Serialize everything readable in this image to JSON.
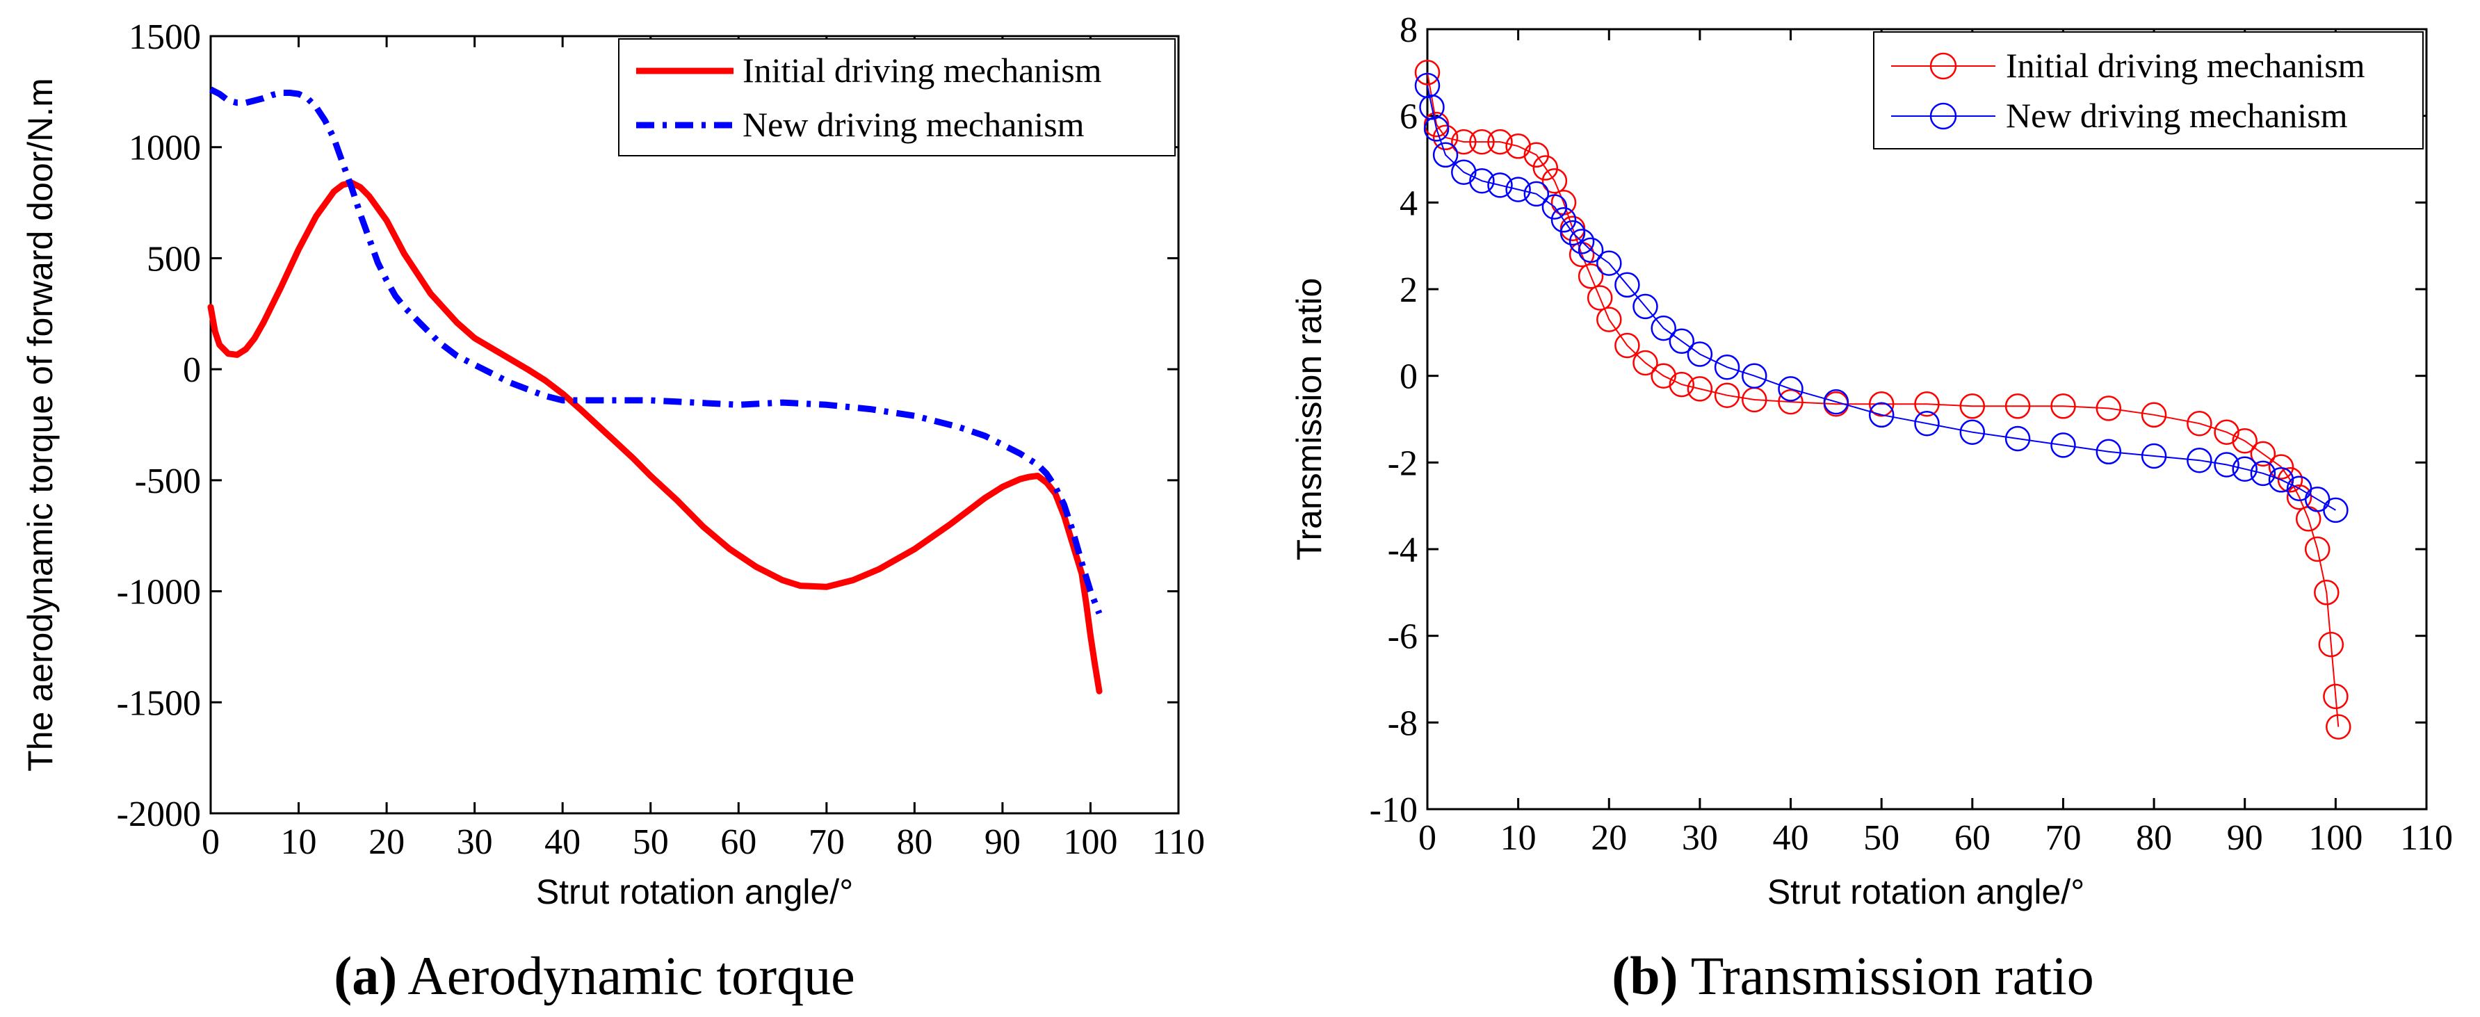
{
  "chart_data": [
    {
      "type": "line",
      "title": "",
      "xlabel": "Strut rotation angle/°",
      "ylabel": "The aerodynamic torque of forward door/N.m",
      "xlim": [
        0,
        110
      ],
      "ylim": [
        -2000,
        1500
      ],
      "xticks": [
        "0",
        "10",
        "20",
        "30",
        "40",
        "50",
        "60",
        "70",
        "80",
        "90",
        "100",
        "110"
      ],
      "yticks": [
        "-2000",
        "-1500",
        "-1000",
        "-500",
        "0",
        "500",
        "1000",
        "1500"
      ],
      "legend": "top-right",
      "caption": {
        "bold": "(a)",
        "text": " Aerodynamic torque"
      },
      "series": [
        {
          "name": "Initial driving mechanism",
          "color": "#ff0000",
          "style": "solid",
          "x": [
            0,
            0.5,
            1,
            2,
            3,
            4,
            5,
            6,
            8,
            10,
            12,
            14,
            15,
            16,
            17,
            18,
            20,
            22,
            25,
            28,
            30,
            33,
            36,
            38,
            40,
            42,
            45,
            48,
            50,
            53,
            56,
            59,
            62,
            65,
            67,
            70,
            73,
            76,
            80,
            84,
            88,
            90,
            92,
            93,
            94,
            95,
            96,
            97,
            98,
            99,
            99.5,
            100,
            100.5,
            101
          ],
          "y": [
            280,
            170,
            110,
            70,
            65,
            90,
            140,
            210,
            370,
            540,
            690,
            800,
            830,
            840,
            820,
            780,
            670,
            520,
            340,
            210,
            140,
            70,
            0,
            -50,
            -110,
            -180,
            -290,
            -400,
            -480,
            -590,
            -710,
            -810,
            -890,
            -950,
            -975,
            -980,
            -950,
            -900,
            -810,
            -700,
            -580,
            -530,
            -495,
            -485,
            -480,
            -510,
            -560,
            -660,
            -790,
            -920,
            -1050,
            -1200,
            -1330,
            -1450
          ]
        },
        {
          "name": "New driving mechanism",
          "color": "#0000ff",
          "style": "dashdot",
          "x": [
            0,
            1,
            2,
            3,
            4,
            5,
            6,
            7,
            8,
            9,
            10,
            11,
            12,
            13,
            14,
            15,
            16,
            17,
            18,
            19,
            20,
            21,
            22,
            24,
            26,
            28,
            30,
            32,
            34,
            36,
            38,
            40,
            45,
            50,
            55,
            60,
            65,
            70,
            75,
            80,
            85,
            88,
            90,
            92,
            94,
            95,
            96,
            97,
            98,
            99,
            100,
            101
          ],
          "y": [
            1260,
            1240,
            1210,
            1200,
            1200,
            1210,
            1220,
            1235,
            1245,
            1245,
            1240,
            1220,
            1180,
            1120,
            1040,
            930,
            820,
            700,
            590,
            480,
            400,
            330,
            280,
            200,
            120,
            60,
            20,
            -20,
            -60,
            -90,
            -120,
            -140,
            -140,
            -140,
            -150,
            -160,
            -150,
            -160,
            -180,
            -210,
            -260,
            -300,
            -340,
            -380,
            -430,
            -470,
            -530,
            -610,
            -730,
            -870,
            -1000,
            -1100
          ]
        }
      ]
    },
    {
      "type": "scatter",
      "title": "",
      "xlabel": "Strut rotation angle/°",
      "ylabel": "Transmission ratio",
      "xlim": [
        0,
        110
      ],
      "ylim": [
        -10,
        8
      ],
      "xticks": [
        "0",
        "10",
        "20",
        "30",
        "40",
        "50",
        "60",
        "70",
        "80",
        "90",
        "100",
        "110"
      ],
      "yticks": [
        "-10",
        "-8",
        "-6",
        "-4",
        "-2",
        "0",
        "2",
        "4",
        "6",
        "8"
      ],
      "legend": "top-right",
      "caption": {
        "bold": "(b)",
        "text": " Transmission ratio"
      },
      "series": [
        {
          "name": "Initial driving mechanism",
          "color": "#ff0000",
          "style": "circle",
          "x": [
            0,
            1,
            2,
            4,
            6,
            8,
            10,
            12,
            13,
            14,
            15,
            16,
            17,
            18,
            19,
            20,
            22,
            24,
            26,
            28,
            30,
            33,
            36,
            40,
            45,
            50,
            55,
            60,
            65,
            70,
            75,
            80,
            85,
            88,
            90,
            92,
            94,
            95,
            96,
            97,
            98,
            99,
            99.5,
            100,
            100.3
          ],
          "y": [
            7.0,
            5.8,
            5.5,
            5.4,
            5.4,
            5.4,
            5.3,
            5.1,
            4.8,
            4.5,
            4.0,
            3.4,
            2.8,
            2.3,
            1.8,
            1.3,
            0.7,
            0.3,
            0.0,
            -0.2,
            -0.3,
            -0.45,
            -0.55,
            -0.6,
            -0.65,
            -0.65,
            -0.65,
            -0.7,
            -0.7,
            -0.7,
            -0.75,
            -0.9,
            -1.1,
            -1.3,
            -1.5,
            -1.8,
            -2.1,
            -2.4,
            -2.8,
            -3.3,
            -4.0,
            -5.0,
            -6.2,
            -7.4,
            -8.1
          ]
        },
        {
          "name": "New driving mechanism",
          "color": "#0000ff",
          "style": "circle",
          "x": [
            0,
            0.5,
            1,
            2,
            4,
            6,
            8,
            10,
            12,
            14,
            15,
            16,
            17,
            18,
            20,
            22,
            24,
            26,
            28,
            30,
            33,
            36,
            40,
            45,
            50,
            55,
            60,
            65,
            70,
            75,
            80,
            85,
            88,
            90,
            92,
            94,
            96,
            98,
            100
          ],
          "y": [
            6.7,
            6.2,
            5.7,
            5.1,
            4.7,
            4.5,
            4.4,
            4.3,
            4.2,
            3.9,
            3.6,
            3.3,
            3.1,
            2.9,
            2.6,
            2.1,
            1.6,
            1.1,
            0.8,
            0.5,
            0.2,
            0.0,
            -0.3,
            -0.6,
            -0.9,
            -1.1,
            -1.3,
            -1.45,
            -1.6,
            -1.75,
            -1.85,
            -1.95,
            -2.05,
            -2.15,
            -2.25,
            -2.4,
            -2.6,
            -2.85,
            -3.1
          ]
        }
      ]
    }
  ]
}
